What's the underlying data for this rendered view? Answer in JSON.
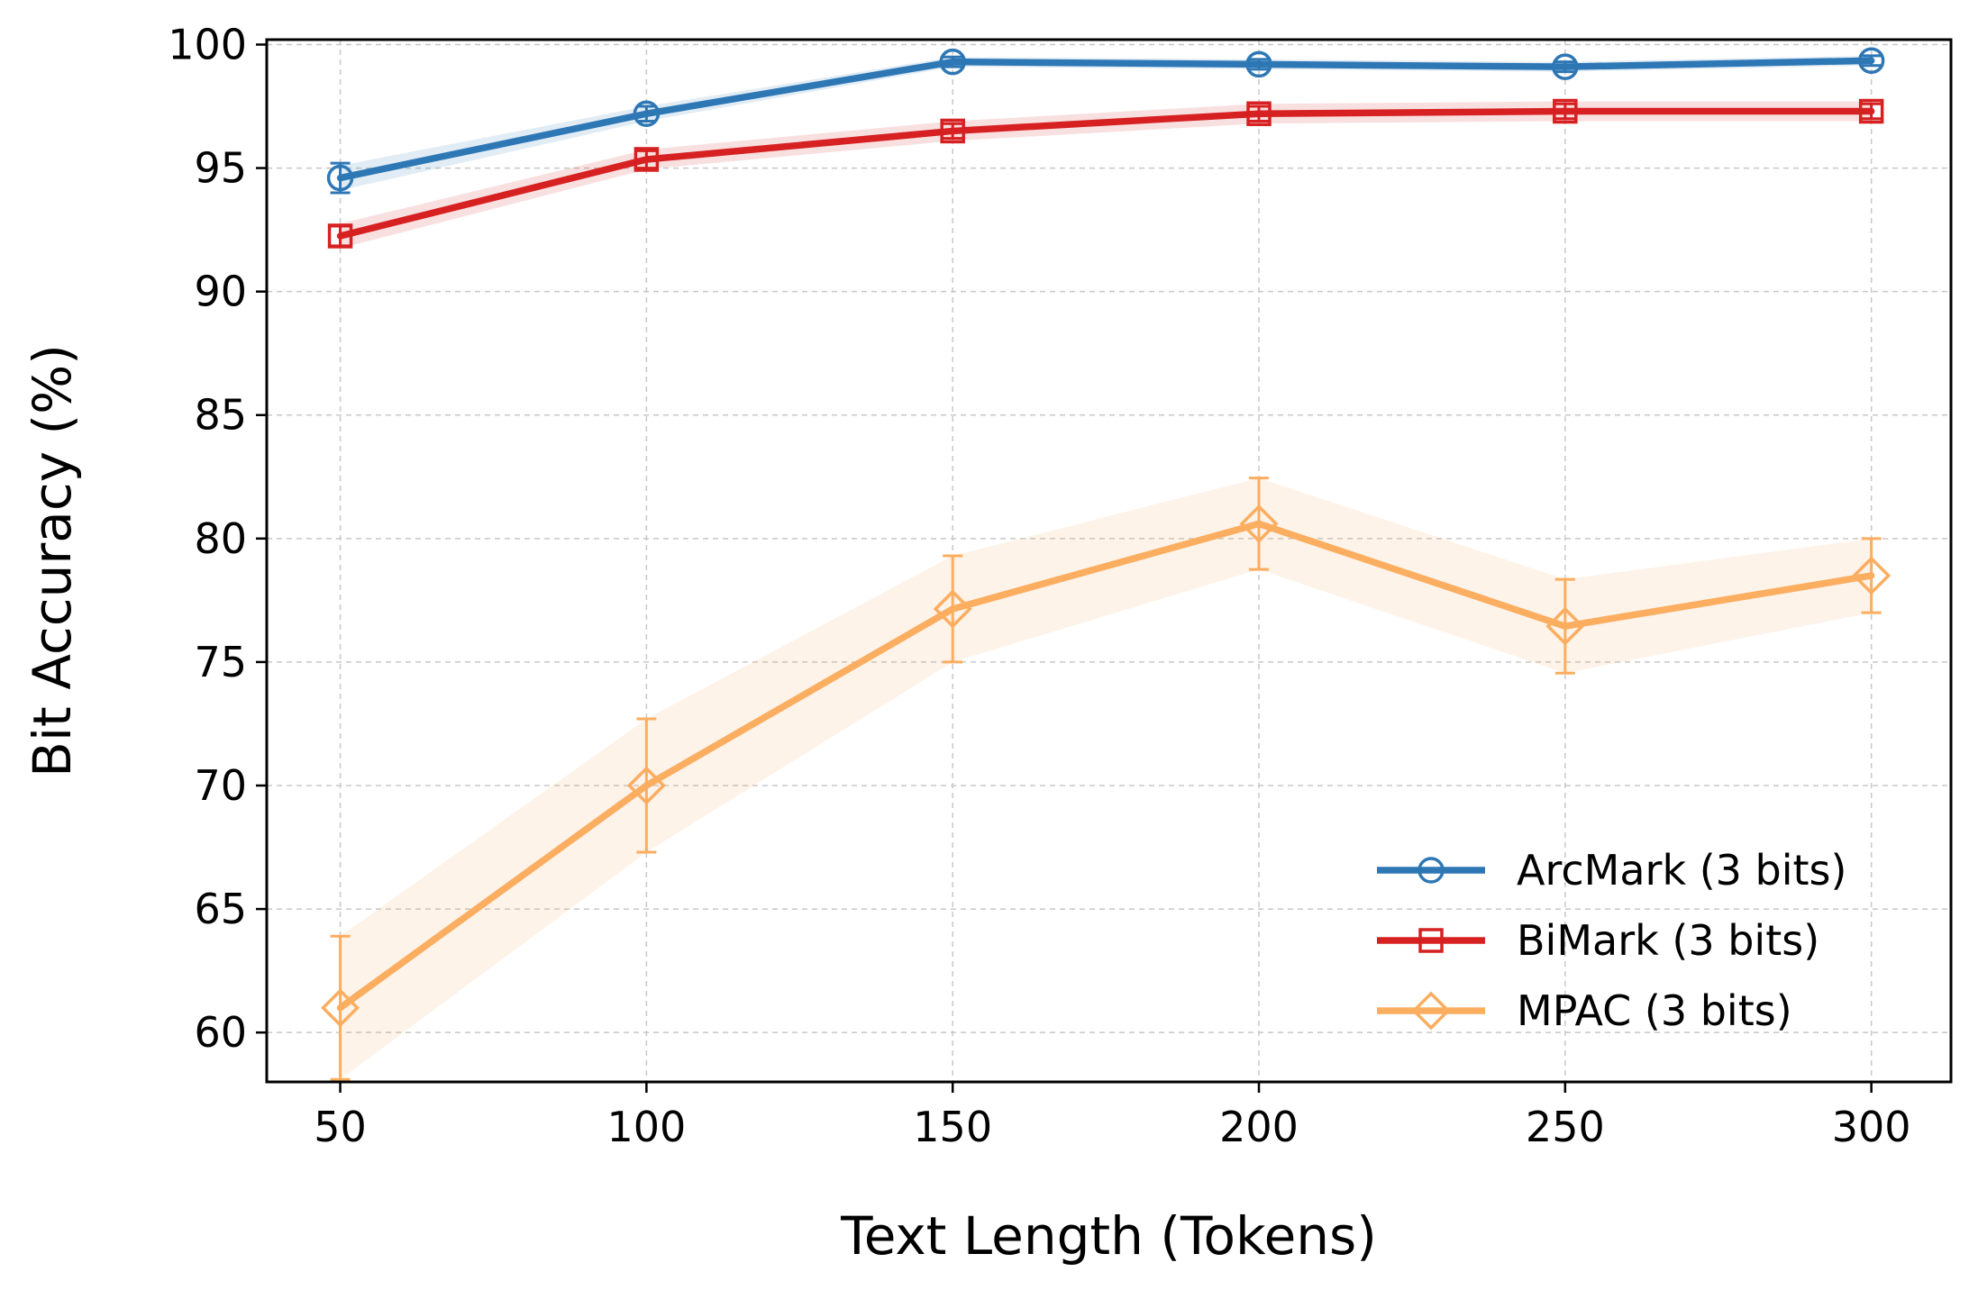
{
  "chart_data": {
    "type": "line",
    "title": "",
    "xlabel": "Text Length (Tokens)",
    "ylabel": "Bit Accuracy (%)",
    "x": [
      50,
      100,
      150,
      200,
      250,
      300
    ],
    "xticks": [
      "50",
      "100",
      "150",
      "200",
      "250",
      "300"
    ],
    "yticks": [
      "60",
      "65",
      "70",
      "75",
      "80",
      "85",
      "90",
      "95",
      "100"
    ],
    "xlim": [
      38,
      313
    ],
    "ylim": [
      58,
      100.2
    ],
    "grid": true,
    "legend_position": "lower-right",
    "series": [
      {
        "name": "ArcMark (3 bits)",
        "color": "#2e77b5",
        "marker": "circle",
        "values": [
          94.6,
          97.2,
          99.3,
          99.2,
          99.1,
          99.35
        ],
        "err": [
          0.6,
          0.3,
          0.2,
          0.2,
          0.2,
          0.2
        ],
        "band": [
          0.5,
          0.3,
          0.2,
          0.2,
          0.2,
          0.2
        ]
      },
      {
        "name": "BiMark (3 bits)",
        "color": "#d62021",
        "marker": "square",
        "values": [
          92.25,
          95.35,
          96.5,
          97.2,
          97.3,
          97.3
        ],
        "err": [
          0.4,
          0.35,
          0.3,
          0.3,
          0.3,
          0.3
        ],
        "band": [
          0.5,
          0.4,
          0.4,
          0.4,
          0.4,
          0.4
        ]
      },
      {
        "name": "MPAC (3 bits)",
        "color": "#fbad60",
        "marker": "diamond",
        "values": [
          61.0,
          70.0,
          77.15,
          80.6,
          76.45,
          78.5
        ],
        "err": [
          2.9,
          2.7,
          2.15,
          1.85,
          1.9,
          1.5
        ],
        "band": [
          2.9,
          2.7,
          2.15,
          1.85,
          1.9,
          1.5
        ]
      }
    ]
  }
}
